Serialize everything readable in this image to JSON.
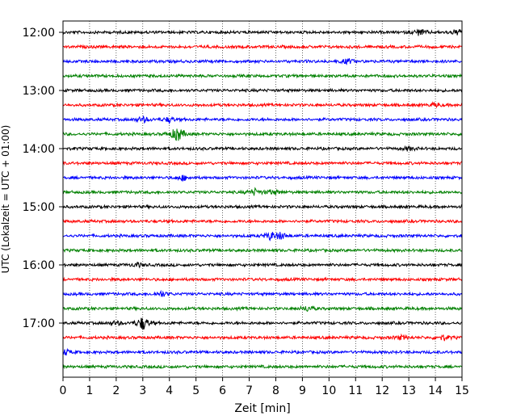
{
  "chart_data": {
    "type": "line",
    "title": "",
    "xlabel": "Zeit  [min]",
    "ylabel": "UTC (Lokalzeit = UTC + 01:00)",
    "xlim": [
      0,
      15
    ],
    "x_ticks": [
      0,
      1,
      2,
      3,
      4,
      5,
      6,
      7,
      8,
      9,
      10,
      11,
      12,
      13,
      14,
      15
    ],
    "y_ticks": [
      "12:00",
      "13:00",
      "14:00",
      "15:00",
      "16:00",
      "17:00"
    ],
    "grid": "vertical-dotted",
    "trace_interval_min": 15,
    "trace_colors": [
      "#000000",
      "#ff0000",
      "#0000ff",
      "#008000"
    ],
    "traces": [
      {
        "start": "12:00",
        "color": "#000000",
        "events": [
          {
            "x": 13.4,
            "amp": 1.0
          },
          {
            "x": 14.8,
            "amp": 0.8
          }
        ]
      },
      {
        "start": "12:15",
        "color": "#ff0000",
        "events": []
      },
      {
        "start": "12:30",
        "color": "#0000ff",
        "events": [
          {
            "x": 10.7,
            "amp": 0.8
          }
        ]
      },
      {
        "start": "12:45",
        "color": "#008000",
        "events": []
      },
      {
        "start": "13:00",
        "color": "#000000",
        "events": []
      },
      {
        "start": "13:15",
        "color": "#ff0000",
        "events": [
          {
            "x": 14.0,
            "amp": 0.6
          }
        ]
      },
      {
        "start": "13:30",
        "color": "#0000ff",
        "events": [
          {
            "x": 3.0,
            "amp": 0.9
          },
          {
            "x": 4.0,
            "amp": 0.8
          }
        ]
      },
      {
        "start": "13:45",
        "color": "#008000",
        "events": [
          {
            "x": 4.3,
            "amp": 2.6
          }
        ]
      },
      {
        "start": "14:00",
        "color": "#000000",
        "events": [
          {
            "x": 13.0,
            "amp": 0.6
          }
        ]
      },
      {
        "start": "14:15",
        "color": "#ff0000",
        "events": []
      },
      {
        "start": "14:30",
        "color": "#0000ff",
        "events": [
          {
            "x": 4.5,
            "amp": 0.8
          }
        ]
      },
      {
        "start": "14:45",
        "color": "#008000",
        "events": [
          {
            "x": 7.2,
            "amp": 1.0
          },
          {
            "x": 7.9,
            "amp": 0.8
          }
        ]
      },
      {
        "start": "15:00",
        "color": "#000000",
        "events": []
      },
      {
        "start": "15:15",
        "color": "#ff0000",
        "events": []
      },
      {
        "start": "15:30",
        "color": "#0000ff",
        "events": [
          {
            "x": 7.8,
            "amp": 1.2
          },
          {
            "x": 8.2,
            "amp": 1.0
          }
        ]
      },
      {
        "start": "15:45",
        "color": "#008000",
        "events": []
      },
      {
        "start": "16:00",
        "color": "#000000",
        "events": [
          {
            "x": 2.8,
            "amp": 0.6
          }
        ]
      },
      {
        "start": "16:15",
        "color": "#ff0000",
        "events": []
      },
      {
        "start": "16:30",
        "color": "#0000ff",
        "events": [
          {
            "x": 3.7,
            "amp": 0.8
          }
        ]
      },
      {
        "start": "16:45",
        "color": "#008000",
        "events": [
          {
            "x": 9.2,
            "amp": 0.8
          }
        ]
      },
      {
        "start": "17:00",
        "color": "#000000",
        "events": [
          {
            "x": 3.0,
            "amp": 2.2
          },
          {
            "x": 2.0,
            "amp": 0.6
          }
        ]
      },
      {
        "start": "17:15",
        "color": "#ff0000",
        "events": [
          {
            "x": 14.3,
            "amp": 0.8
          },
          {
            "x": 12.7,
            "amp": 0.6
          }
        ]
      },
      {
        "start": "17:30",
        "color": "#0000ff",
        "events": [
          {
            "x": 0.1,
            "amp": 0.9
          }
        ]
      },
      {
        "start": "17:45",
        "color": "#008000",
        "events": []
      }
    ]
  }
}
